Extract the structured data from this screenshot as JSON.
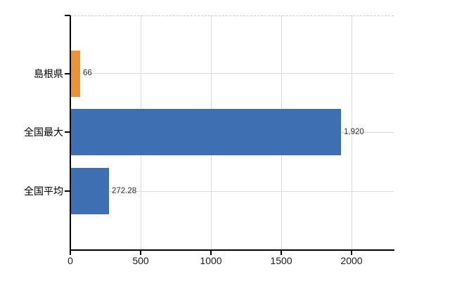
{
  "chart_data": {
    "type": "bar",
    "orientation": "horizontal",
    "title": "",
    "xlabel": "",
    "ylabel": "",
    "categories": [
      "島根県",
      "全国最大",
      "全国平均"
    ],
    "values": [
      66,
      1920,
      272.28
    ],
    "value_labels": [
      "66",
      "1,920",
      "272.28"
    ],
    "series": [
      {
        "name": "value",
        "values": [
          66,
          1920,
          272.28
        ]
      }
    ],
    "bar_colors": [
      "#ED9235",
      "#3D6FB2",
      "#3D6FB2"
    ],
    "xlim": [
      0,
      2300
    ],
    "xticks": [
      0,
      500,
      1000,
      1500,
      2000
    ],
    "xtick_labels": [
      "0",
      "500",
      "1000",
      "1500",
      "2000"
    ],
    "grid": true,
    "legend": false
  },
  "colors": {
    "background": "#ffffff",
    "axis": "#000000",
    "vertical_grid": "#dcdcdc",
    "horizontal_grid": "#d9ddd6",
    "plot_border": "#c9c9c9",
    "category_label": "#000000",
    "value_label": "#333333",
    "tick_label": "#1a1a1a",
    "bar_orange": "#ED9235",
    "bar_blue": "#3D6FB2"
  }
}
